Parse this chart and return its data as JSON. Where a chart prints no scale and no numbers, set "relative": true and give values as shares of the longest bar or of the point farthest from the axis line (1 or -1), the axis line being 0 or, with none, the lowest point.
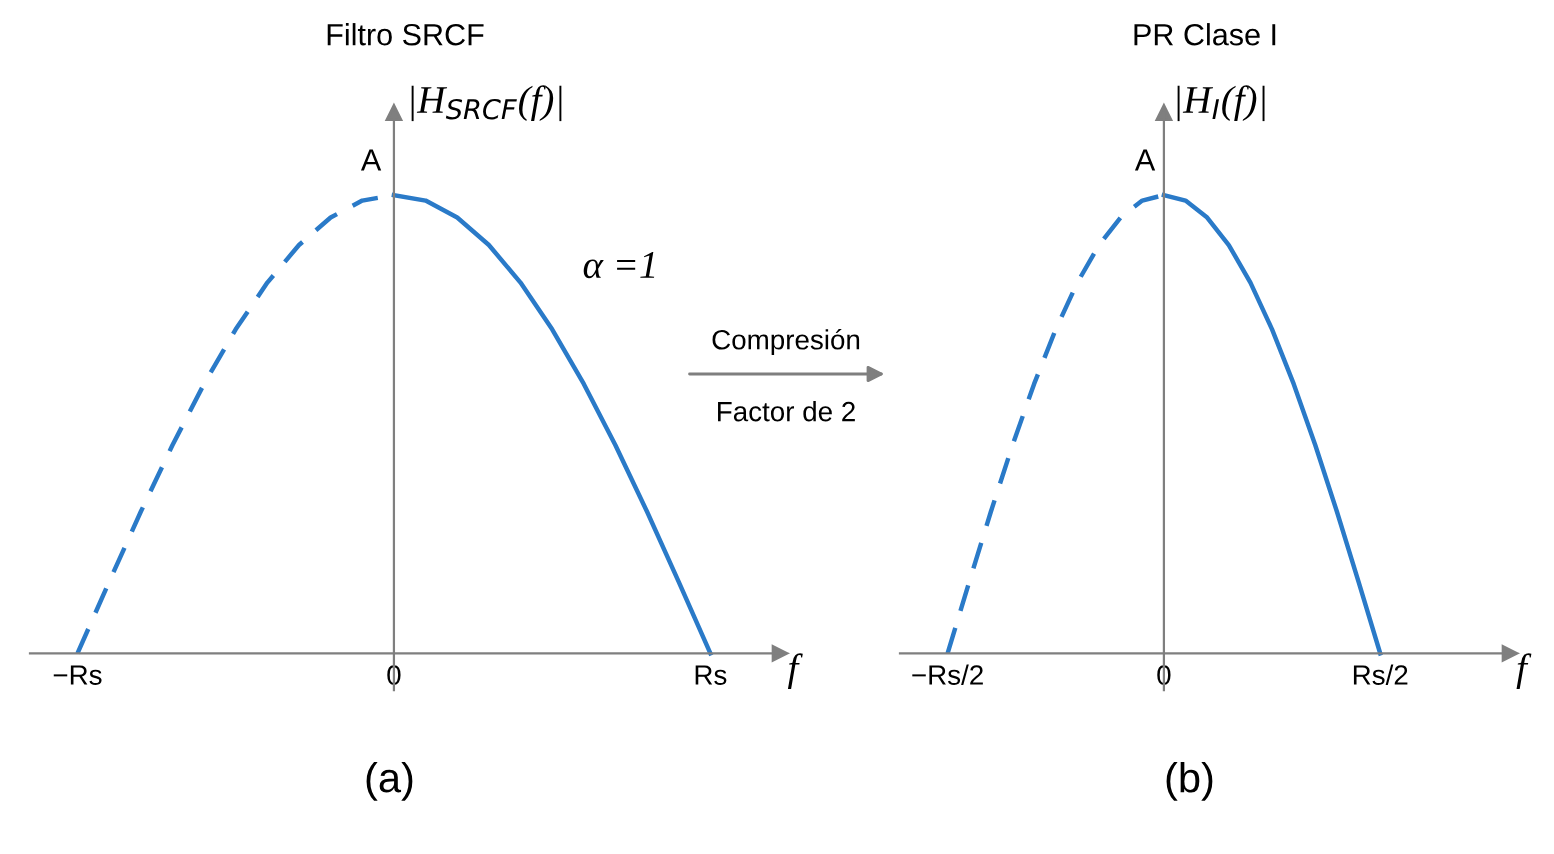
{
  "chart_data": [
    {
      "type": "line",
      "title": "Filtro SRCF",
      "ylabel": "|H$_{SRCF}$(f)|",
      "xlabel": "f",
      "relative": true,
      "categories": [
        "−Rs",
        null,
        null,
        null,
        null,
        null,
        null,
        null,
        null,
        null,
        "0",
        null,
        null,
        null,
        null,
        null,
        null,
        null,
        null,
        null,
        "Rs"
      ],
      "series": [
        {
          "color": "#2a7ac8",
          "line_style": "dashed",
          "values": [
            0,
            0.156,
            0.309,
            0.454,
            0.588,
            0.707,
            0.809,
            0.891,
            0.951,
            0.988,
            1,
            null,
            null,
            null,
            null,
            null,
            null,
            null,
            null,
            null,
            null
          ]
        },
        {
          "color": "#2a7ac8",
          "line_style": "solid",
          "values": [
            null,
            null,
            null,
            null,
            null,
            null,
            null,
            null,
            null,
            null,
            1,
            0.988,
            0.951,
            0.891,
            0.809,
            0.707,
            0.588,
            0.454,
            0.309,
            0.156,
            0
          ]
        }
      ],
      "annotations": [
        "A",
        "α =1",
        "Compresión",
        "Factor de 2",
        "(a)"
      ]
    },
    {
      "type": "line",
      "title": "PR Clase I",
      "ylabel": "|H$_{I}$(f)|",
      "xlabel": "f",
      "relative": true,
      "categories": [
        "−Rs/2",
        null,
        null,
        null,
        null,
        null,
        null,
        null,
        null,
        null,
        "0",
        null,
        null,
        null,
        null,
        null,
        null,
        null,
        null,
        null,
        "Rs/2"
      ],
      "series": [
        {
          "color": "#2a7ac8",
          "line_style": "dashed",
          "values": [
            0,
            0.156,
            0.309,
            0.454,
            0.588,
            0.707,
            0.809,
            0.891,
            0.951,
            0.988,
            1,
            null,
            null,
            null,
            null,
            null,
            null,
            null,
            null,
            null,
            null
          ]
        },
        {
          "color": "#2a7ac8",
          "line_style": "solid",
          "values": [
            null,
            null,
            null,
            null,
            null,
            null,
            null,
            null,
            null,
            null,
            1,
            0.988,
            0.951,
            0.891,
            0.809,
            0.707,
            0.588,
            0.454,
            0.309,
            0.156,
            0
          ]
        }
      ],
      "annotations": [
        "A",
        "(b)"
      ]
    }
  ]
}
